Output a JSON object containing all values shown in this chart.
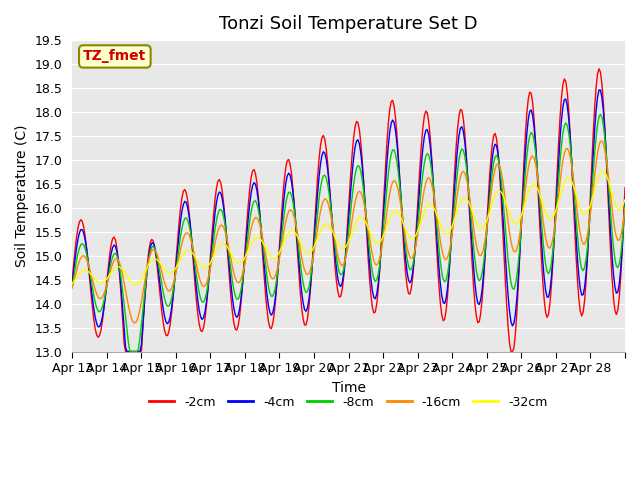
{
  "title": "Tonzi Soil Temperature Set D",
  "xlabel": "Time",
  "ylabel": "Soil Temperature (C)",
  "ylim": [
    13.0,
    19.5
  ],
  "yticks": [
    13.0,
    13.5,
    14.0,
    14.5,
    15.0,
    15.5,
    16.0,
    16.5,
    17.0,
    17.5,
    18.0,
    18.5,
    19.0,
    19.5
  ],
  "series_colors": [
    "#ff0000",
    "#0000ff",
    "#00cc00",
    "#ff8800",
    "#ffff00"
  ],
  "series_labels": [
    "-2cm",
    "-4cm",
    "-8cm",
    "-16cm",
    "-32cm"
  ],
  "label_box_text": "TZ_fmet",
  "label_box_facecolor": "#ffffcc",
  "label_box_edgecolor": "#888800",
  "label_box_textcolor": "#cc0000",
  "background_color": "#e8e8e8",
  "n_points": 384,
  "x_tick_positions": [
    0,
    1,
    2,
    3,
    4,
    5,
    6,
    7,
    8,
    9,
    10,
    11,
    12,
    13,
    14,
    15,
    16
  ],
  "x_tick_labels": [
    "Apr 13",
    "Apr 14",
    "Apr 15",
    "Apr 16",
    "Apr 17",
    "Apr 18",
    "Apr 19",
    "Apr 20",
    "Apr 21",
    "Apr 22",
    "Apr 23",
    "Apr 24",
    "Apr 25",
    "Apr 26",
    "Apr 27",
    "Apr 28",
    ""
  ],
  "title_fontsize": 13,
  "axis_label_fontsize": 10,
  "tick_fontsize": 9,
  "legend_fontsize": 9
}
